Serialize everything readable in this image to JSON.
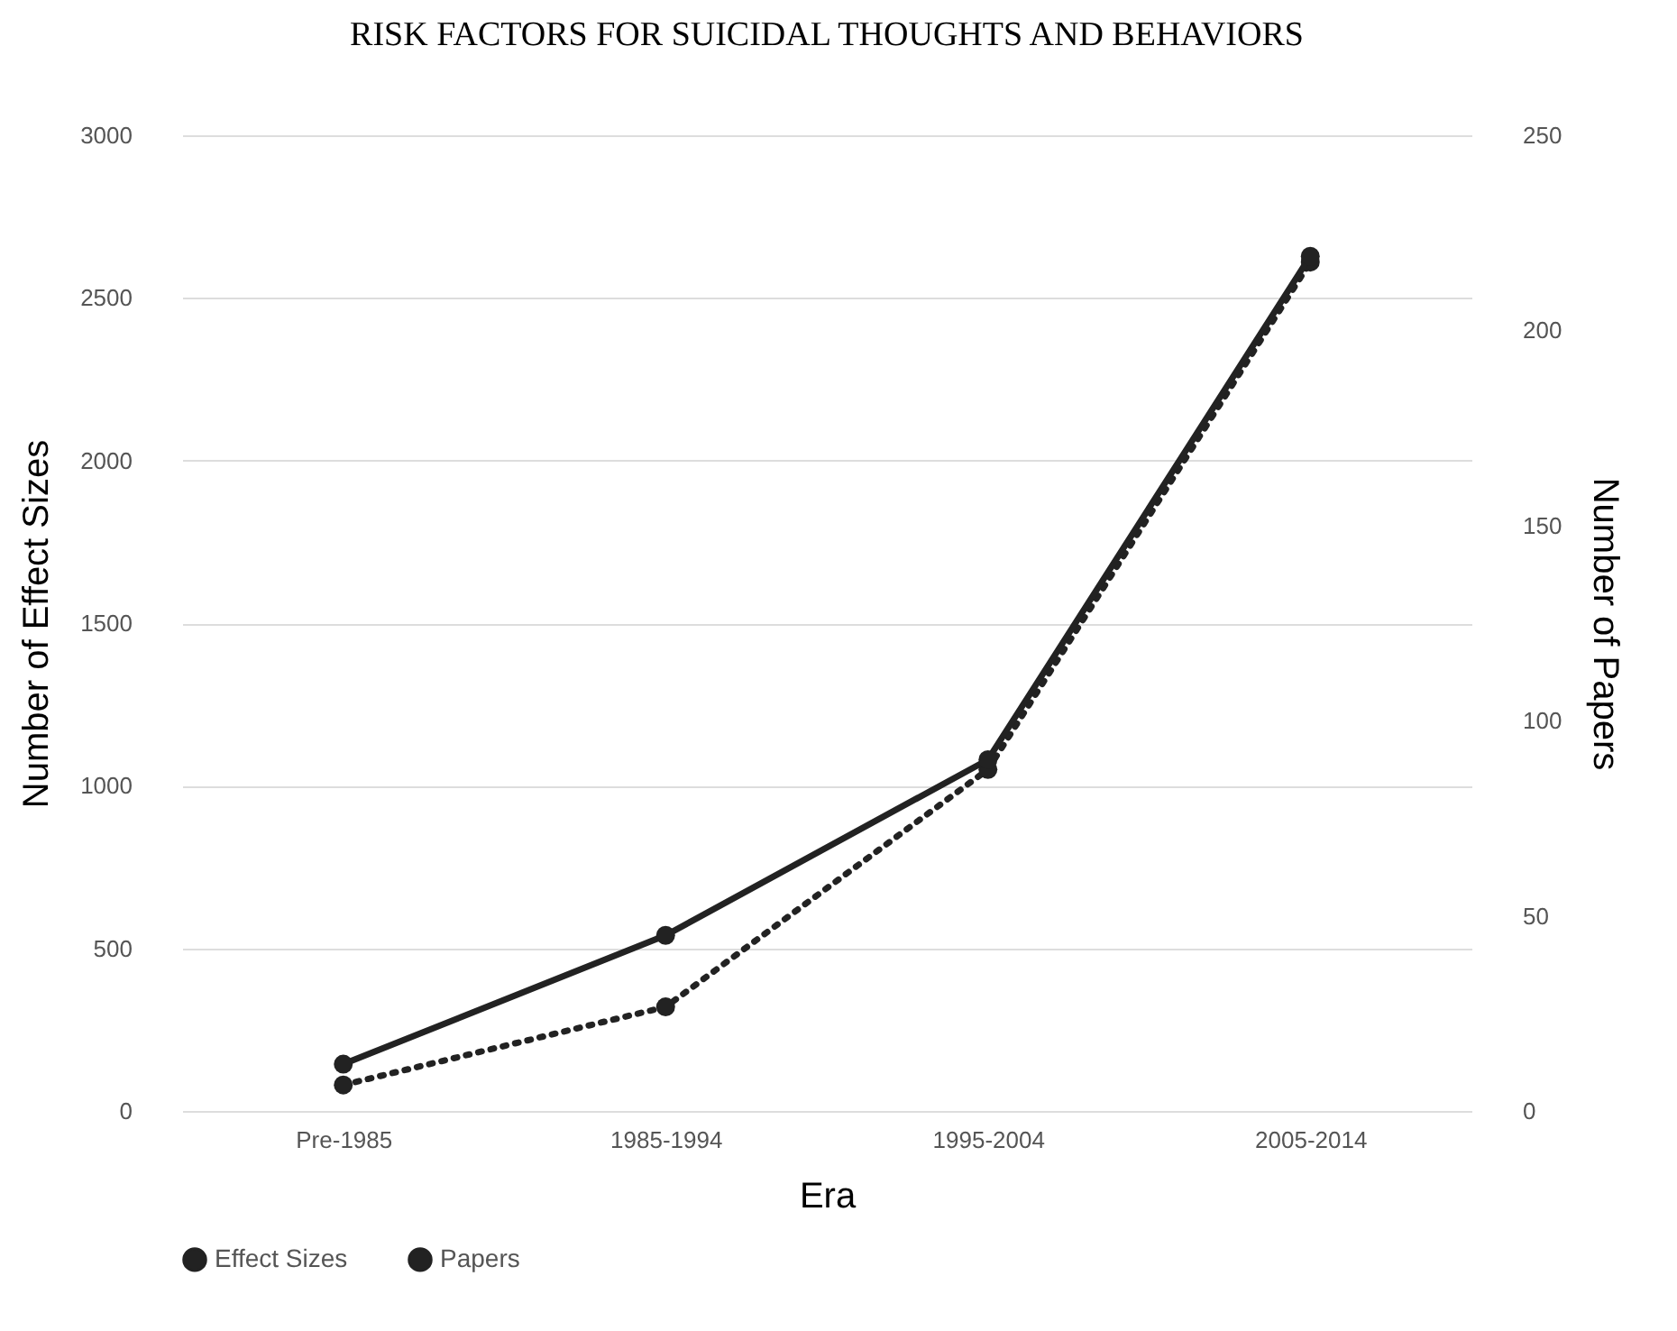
{
  "chart_data": {
    "type": "line",
    "title": "RISK FACTORS FOR SUICIDAL THOUGHTS AND BEHAVIORS",
    "xlabel": "Era",
    "ylabel": "Number of Effect Sizes",
    "y2label": "Number of Papers",
    "categories": [
      "Pre-1985",
      "1985-1994",
      "1995-2004",
      "2005-2014"
    ],
    "series": [
      {
        "name": "Effect Sizes",
        "color": "#222222",
        "line_style": "dotted",
        "values": [
          80,
          320,
          1050,
          2610
        ]
      },
      {
        "name": "Papers",
        "color": "#222222",
        "line_style": "solid",
        "axis": "y2",
        "values": [
          12,
          45,
          90,
          219
        ]
      }
    ],
    "ylim": [
      0,
      3000
    ],
    "yticks": [
      0,
      500,
      1000,
      1500,
      2000,
      2500,
      3000
    ],
    "y2lim": [
      0,
      250
    ],
    "y2ticks": [
      0,
      50,
      100,
      150,
      200,
      250
    ],
    "grid": "y",
    "legend": "bottom",
    "marker": "circle"
  }
}
